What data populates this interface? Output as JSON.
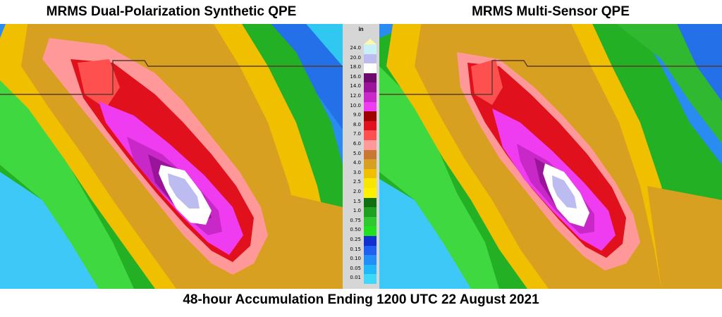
{
  "titles": {
    "left": "MRMS Dual-Polarization Synthetic QPE",
    "right": "MRMS Multi-Sensor QPE",
    "footer": "48-hour Accumulation Ending 1200 UTC 22 August 2021"
  },
  "legend": {
    "unit": "in",
    "top_color": "#fff7a8",
    "bins": [
      {
        "label": "24.0",
        "color": "#c8f0f8"
      },
      {
        "label": "20.0",
        "color": "#bcbcf0"
      },
      {
        "label": "18.0",
        "color": "#ffffff"
      },
      {
        "label": "16.0",
        "color": "#6e0a6e"
      },
      {
        "label": "14.0",
        "color": "#9a149a"
      },
      {
        "label": "12.0",
        "color": "#c828c8"
      },
      {
        "label": "10.0",
        "color": "#f03cf0"
      },
      {
        "label": "9.0",
        "color": "#a00000"
      },
      {
        "label": "8.0",
        "color": "#e0101c"
      },
      {
        "label": "7.0",
        "color": "#ff5050"
      },
      {
        "label": "6.0",
        "color": "#ff9898"
      },
      {
        "label": "5.0",
        "color": "#c87832"
      },
      {
        "label": "4.0",
        "color": "#d8a020"
      },
      {
        "label": "3.0",
        "color": "#f0c000"
      },
      {
        "label": "2.5",
        "color": "#f8e600"
      },
      {
        "label": "2.0",
        "color": "#fff000"
      },
      {
        "label": "1.5",
        "color": "#107010"
      },
      {
        "label": "1.0",
        "color": "#20a020"
      },
      {
        "label": "0.75",
        "color": "#30c830"
      },
      {
        "label": "0.50",
        "color": "#20e020"
      },
      {
        "label": "0.25",
        "color": "#1030d0"
      },
      {
        "label": "0.15",
        "color": "#2060f0"
      },
      {
        "label": "0.10",
        "color": "#2090f8"
      },
      {
        "label": "0.05",
        "color": "#20b8f8"
      },
      {
        "label": "0.01",
        "color": "#40d8f8"
      }
    ]
  }
}
